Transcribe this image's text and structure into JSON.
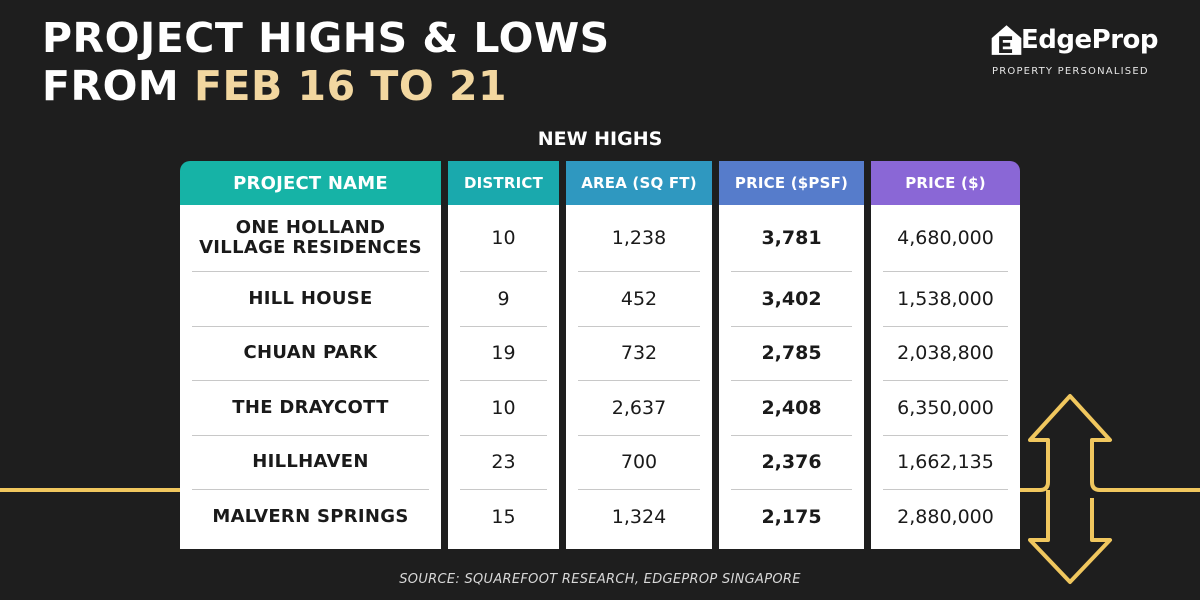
{
  "header": {
    "title_line1": "PROJECT HIGHS & LOWS",
    "title_line2_prefix": "FROM ",
    "title_line2_accent": "FEB 16 TO 21"
  },
  "logo": {
    "brand": "EdgeProp",
    "tagline": "PROPERTY PERSONALISED"
  },
  "section": {
    "heading": "NEW HIGHS"
  },
  "table": {
    "columns": [
      "PROJECT NAME",
      "DISTRICT",
      "AREA (SQ FT)",
      "PRICE ($PSF)",
      "PRICE ($)"
    ],
    "rows": [
      {
        "project_line1": "ONE HOLLAND",
        "project_line2": "VILLAGE RESIDENCES",
        "district": "10",
        "area": "1,238",
        "psf": "3,781",
        "price": "4,680,000"
      },
      {
        "project_line1": "HILL HOUSE",
        "project_line2": "",
        "district": "9",
        "area": "452",
        "psf": "3,402",
        "price": "1,538,000"
      },
      {
        "project_line1": "CHUAN PARK",
        "project_line2": "",
        "district": "19",
        "area": "732",
        "psf": "2,785",
        "price": "2,038,800"
      },
      {
        "project_line1": "THE DRAYCOTT",
        "project_line2": "",
        "district": "10",
        "area": "2,637",
        "psf": "2,408",
        "price": "6,350,000"
      },
      {
        "project_line1": "HILLHAVEN",
        "project_line2": "",
        "district": "23",
        "area": "700",
        "psf": "2,376",
        "price": "1,662,135"
      },
      {
        "project_line1": "MALVERN SPRINGS",
        "project_line2": "",
        "district": "15",
        "area": "1,324",
        "psf": "2,175",
        "price": "2,880,000"
      }
    ]
  },
  "footer": {
    "source": "SOURCE: SQUAREFOOT RESEARCH, EDGEPROP SINGAPORE"
  },
  "colors": {
    "background": "#1e1e1e",
    "accent_gold": "#f2d7a0",
    "line_gold": "#f0c75e",
    "head_project": "#16b3a6",
    "head_district": "#1aa9ad",
    "head_area": "#2f98c0",
    "head_psf": "#567ccb",
    "head_price": "#8a67d6"
  },
  "icons": [
    "edgeprop-logo-icon",
    "up-down-arrow-icon"
  ]
}
